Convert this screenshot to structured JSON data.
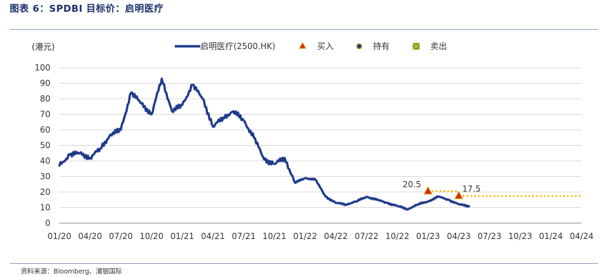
{
  "figure_title": "图表 6：SPDBI 目标价：启明医疗",
  "source_note": "资料来源：Bloomberg、浦银国际",
  "colors": {
    "price_line": "#1f3a8c",
    "marker_fill": "#e02020",
    "marker_edge": "#c9a000",
    "target_line": "#f5b800",
    "hold_dot": "#1f3a8c",
    "sell_fill": "#3a9a3a"
  },
  "chart_data": {
    "type": "line",
    "ylabel": "(港元)",
    "ylim": [
      0,
      100
    ],
    "yticks": [
      0,
      10,
      20,
      30,
      40,
      50,
      60,
      70,
      80,
      90,
      100
    ],
    "xticks": [
      "01/20",
      "04/20",
      "07/20",
      "10/20",
      "01/21",
      "04/21",
      "07/21",
      "10/21",
      "01/22",
      "04/22",
      "07/22",
      "10/22",
      "01/23",
      "04/23",
      "07/23",
      "10/23",
      "01/24",
      "04/24"
    ],
    "grid": "horizontal",
    "legend": {
      "placement": "top-center",
      "entries": [
        {
          "label": "启明医疗(2500.HK)",
          "symbol": "line"
        },
        {
          "label": "买入",
          "symbol": "triangle"
        },
        {
          "label": "持有",
          "symbol": "circle"
        },
        {
          "label": "卖出",
          "symbol": "x-square"
        }
      ]
    },
    "series": [
      {
        "name": "启明医疗(2500.HK)",
        "x": [
          "01/20",
          "02/20",
          "03/20",
          "04/20",
          "05/20",
          "06/20",
          "07/20",
          "08/20",
          "09/20",
          "10/20",
          "11/20",
          "12/20",
          "01/21",
          "02/21",
          "03/21",
          "04/21",
          "05/21",
          "06/21",
          "07/21",
          "08/21",
          "09/21",
          "10/21",
          "11/21",
          "12/21",
          "01/22",
          "02/22",
          "03/22",
          "04/22",
          "05/22",
          "06/22",
          "07/22",
          "08/22",
          "09/22",
          "10/22",
          "11/22",
          "12/22",
          "01/23",
          "02/23",
          "03/23",
          "04/23",
          "05/23"
        ],
        "values": [
          37,
          44,
          45,
          42,
          48,
          57,
          60,
          84,
          77,
          70,
          93,
          72,
          76,
          89,
          80,
          62,
          68,
          72,
          66,
          55,
          41,
          38,
          42,
          26,
          29,
          28,
          17,
          13,
          12,
          14,
          17,
          15,
          13,
          11,
          9,
          12,
          14,
          17,
          15,
          12,
          11
        ]
      }
    ],
    "ratings": [
      {
        "date": "01/23",
        "rating": "买入",
        "target_price": 20.5,
        "label": "20.5",
        "until": "04/23"
      },
      {
        "date": "04/23",
        "rating": "买入",
        "target_price": 17.5,
        "label": "17.5",
        "until": "04/24"
      }
    ]
  }
}
